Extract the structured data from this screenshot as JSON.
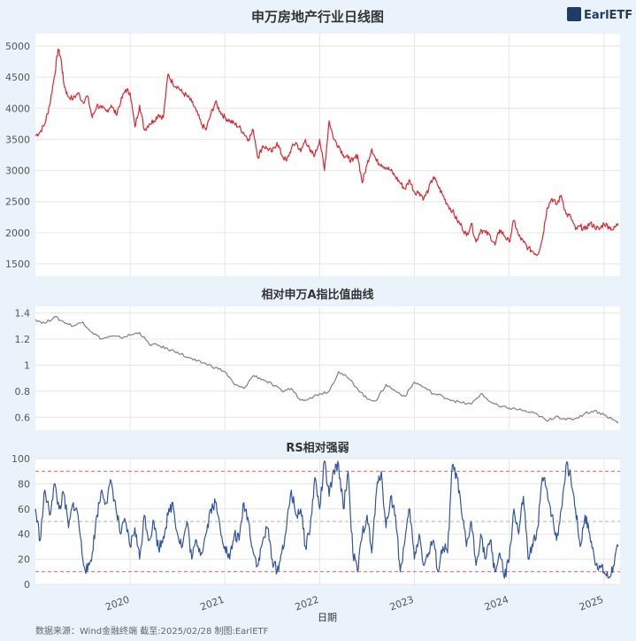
{
  "source_note": "数据来源：Wind金融终端 截至:2025/02/28 制图:EarlETF",
  "logo": {
    "text": "EarlETF",
    "icon": "earletf-logo-icon",
    "color": "#1f3c66"
  },
  "xlabel": "日期",
  "x_ticks": [
    "2020",
    "2021",
    "2022",
    "2023",
    "2024",
    "2025"
  ],
  "chart_data": [
    {
      "type": "line",
      "title": "申万房地产行业日线图",
      "color": "#e0262e",
      "ylim": [
        1300,
        5200
      ],
      "yticks": [
        1500,
        2000,
        2500,
        3000,
        3500,
        4000,
        4500,
        5000
      ],
      "xlim": [
        2019.0,
        2025.17
      ],
      "series": [
        {
          "x": [
            2019.0,
            2019.05,
            2019.1,
            2019.15,
            2019.2,
            2019.24,
            2019.27,
            2019.3,
            2019.34,
            2019.4,
            2019.45,
            2019.5,
            2019.55,
            2019.6,
            2019.65,
            2019.7,
            2019.75,
            2019.8,
            2019.85,
            2019.9,
            2019.95,
            2020.0,
            2020.05,
            2020.1,
            2020.15,
            2020.2,
            2020.25,
            2020.3,
            2020.35,
            2020.4,
            2020.45,
            2020.5,
            2020.55,
            2020.6,
            2020.65,
            2020.7,
            2020.75,
            2020.8,
            2020.85,
            2020.9,
            2020.95,
            2021.0,
            2021.05,
            2021.1,
            2021.15,
            2021.2,
            2021.25,
            2021.3,
            2021.35,
            2021.4,
            2021.45,
            2021.5,
            2021.55,
            2021.6,
            2021.65,
            2021.7,
            2021.75,
            2021.8,
            2021.85,
            2021.9,
            2021.95,
            2022.0,
            2022.05,
            2022.1,
            2022.15,
            2022.2,
            2022.25,
            2022.3,
            2022.35,
            2022.4,
            2022.45,
            2022.5,
            2022.55,
            2022.6,
            2022.65,
            2022.7,
            2022.75,
            2022.8,
            2022.85,
            2022.9,
            2022.95,
            2023.0,
            2023.05,
            2023.1,
            2023.15,
            2023.2,
            2023.25,
            2023.3,
            2023.35,
            2023.4,
            2023.45,
            2023.5,
            2023.55,
            2023.6,
            2023.65,
            2023.7,
            2023.75,
            2023.8,
            2023.85,
            2023.9,
            2023.95,
            2024.0,
            2024.05,
            2024.1,
            2024.15,
            2024.2,
            2024.25,
            2024.3,
            2024.35,
            2024.4,
            2024.45,
            2024.5,
            2024.55,
            2024.6,
            2024.65,
            2024.7,
            2024.75,
            2024.8,
            2024.85,
            2024.9,
            2024.95,
            2025.0,
            2025.05,
            2025.1,
            2025.15
          ],
          "values": [
            3560,
            3620,
            3750,
            4050,
            4500,
            4950,
            4800,
            4400,
            4200,
            4150,
            4250,
            4100,
            4200,
            3850,
            4050,
            4000,
            3950,
            4050,
            3900,
            4100,
            4300,
            4250,
            3700,
            4050,
            3650,
            3750,
            3800,
            3900,
            3850,
            4550,
            4400,
            4350,
            4250,
            4200,
            4100,
            3950,
            3750,
            3650,
            3900,
            4100,
            3950,
            3850,
            3800,
            3750,
            3700,
            3600,
            3500,
            3650,
            3200,
            3400,
            3350,
            3300,
            3450,
            3250,
            3150,
            3350,
            3450,
            3300,
            3500,
            3300,
            3250,
            3500,
            3000,
            3800,
            3500,
            3400,
            3250,
            3200,
            3150,
            3250,
            2800,
            3100,
            3350,
            3150,
            3100,
            3050,
            3000,
            2900,
            2800,
            2700,
            2850,
            2650,
            2650,
            2550,
            2700,
            2900,
            2750,
            2600,
            2450,
            2350,
            2200,
            2100,
            1950,
            2150,
            1850,
            2050,
            2000,
            1950,
            1800,
            2050,
            1950,
            1850,
            2200,
            1950,
            1850,
            1750,
            1700,
            1650,
            1900,
            2400,
            2550,
            2450,
            2600,
            2300,
            2250,
            2050,
            2100,
            2050,
            2150,
            2100,
            2050,
            2150,
            2100,
            2050,
            2150
          ]
        }
      ]
    },
    {
      "type": "line",
      "title": "相对申万A指比值曲线",
      "color": "#808080",
      "ylim": [
        0.5,
        1.45
      ],
      "yticks": [
        0.6,
        0.8,
        1.0,
        1.2,
        1.4
      ],
      "xlim": [
        2019.0,
        2025.17
      ],
      "series": [
        {
          "x": [
            2019.0,
            2019.1,
            2019.2,
            2019.3,
            2019.4,
            2019.5,
            2019.6,
            2019.7,
            2019.8,
            2019.9,
            2020.0,
            2020.1,
            2020.2,
            2020.3,
            2020.4,
            2020.5,
            2020.6,
            2020.7,
            2020.8,
            2020.9,
            2021.0,
            2021.1,
            2021.2,
            2021.3,
            2021.4,
            2021.5,
            2021.6,
            2021.7,
            2021.8,
            2021.9,
            2022.0,
            2022.1,
            2022.2,
            2022.3,
            2022.4,
            2022.5,
            2022.6,
            2022.7,
            2022.8,
            2022.9,
            2023.0,
            2023.1,
            2023.2,
            2023.3,
            2023.4,
            2023.5,
            2023.6,
            2023.7,
            2023.8,
            2023.9,
            2024.0,
            2024.1,
            2024.2,
            2024.3,
            2024.4,
            2024.5,
            2024.6,
            2024.7,
            2024.8,
            2024.9,
            2025.0,
            2025.1,
            2025.15
          ],
          "values": [
            1.35,
            1.32,
            1.37,
            1.33,
            1.3,
            1.33,
            1.25,
            1.2,
            1.22,
            1.21,
            1.23,
            1.25,
            1.16,
            1.15,
            1.12,
            1.1,
            1.06,
            1.03,
            1.01,
            0.98,
            0.95,
            0.85,
            0.82,
            0.92,
            0.89,
            0.85,
            0.8,
            0.82,
            0.73,
            0.75,
            0.78,
            0.8,
            0.95,
            0.9,
            0.82,
            0.74,
            0.73,
            0.85,
            0.8,
            0.76,
            0.87,
            0.83,
            0.78,
            0.76,
            0.73,
            0.71,
            0.7,
            0.78,
            0.72,
            0.68,
            0.67,
            0.66,
            0.64,
            0.62,
            0.57,
            0.61,
            0.58,
            0.59,
            0.63,
            0.65,
            0.62,
            0.58,
            0.56
          ]
        }
      ]
    },
    {
      "type": "line",
      "title": "RS相对强弱",
      "color": "#2f55a4",
      "ylim": [
        0,
        100
      ],
      "yticks": [
        0,
        20,
        40,
        60,
        80,
        100
      ],
      "xlim": [
        2019.0,
        2025.17
      ],
      "reference_lines": [
        {
          "y": 90,
          "color": "#e06060"
        },
        {
          "y": 50,
          "color": "#b0b0b0"
        },
        {
          "y": 10,
          "color": "#e06060"
        }
      ],
      "series": [
        {
          "x": [
            2019.0,
            2019.05,
            2019.1,
            2019.15,
            2019.2,
            2019.25,
            2019.3,
            2019.35,
            2019.4,
            2019.45,
            2019.5,
            2019.55,
            2019.6,
            2019.65,
            2019.7,
            2019.75,
            2019.8,
            2019.85,
            2019.9,
            2019.95,
            2020.0,
            2020.05,
            2020.1,
            2020.15,
            2020.2,
            2020.25,
            2020.3,
            2020.35,
            2020.4,
            2020.45,
            2020.5,
            2020.55,
            2020.6,
            2020.65,
            2020.7,
            2020.75,
            2020.8,
            2020.85,
            2020.9,
            2020.95,
            2021.0,
            2021.05,
            2021.1,
            2021.15,
            2021.2,
            2021.25,
            2021.3,
            2021.35,
            2021.4,
            2021.45,
            2021.5,
            2021.55,
            2021.6,
            2021.65,
            2021.7,
            2021.75,
            2021.8,
            2021.85,
            2021.9,
            2021.95,
            2022.0,
            2022.05,
            2022.1,
            2022.15,
            2022.2,
            2022.25,
            2022.3,
            2022.35,
            2022.4,
            2022.45,
            2022.5,
            2022.55,
            2022.6,
            2022.65,
            2022.7,
            2022.75,
            2022.8,
            2022.85,
            2022.9,
            2022.95,
            2023.0,
            2023.05,
            2023.1,
            2023.15,
            2023.2,
            2023.25,
            2023.3,
            2023.35,
            2023.4,
            2023.45,
            2023.5,
            2023.55,
            2023.6,
            2023.65,
            2023.7,
            2023.75,
            2023.8,
            2023.85,
            2023.9,
            2023.95,
            2024.0,
            2024.05,
            2024.1,
            2024.15,
            2024.2,
            2024.25,
            2024.3,
            2024.35,
            2024.4,
            2024.45,
            2024.5,
            2024.55,
            2024.6,
            2024.65,
            2024.7,
            2024.75,
            2024.8,
            2024.85,
            2024.9,
            2024.95,
            2025.0,
            2025.05,
            2025.1,
            2025.15
          ],
          "values": [
            60,
            35,
            75,
            55,
            80,
            60,
            72,
            45,
            65,
            55,
            20,
            10,
            25,
            55,
            75,
            65,
            82,
            60,
            40,
            50,
            30,
            45,
            20,
            55,
            35,
            50,
            28,
            38,
            55,
            65,
            40,
            30,
            50,
            20,
            35,
            25,
            40,
            60,
            65,
            45,
            30,
            20,
            40,
            35,
            65,
            50,
            25,
            15,
            35,
            45,
            20,
            10,
            25,
            45,
            75,
            55,
            60,
            30,
            45,
            85,
            60,
            98,
            70,
            90,
            95,
            60,
            90,
            25,
            10,
            40,
            55,
            25,
            75,
            90,
            45,
            70,
            55,
            10,
            35,
            60,
            20,
            40,
            15,
            25,
            35,
            10,
            30,
            25,
            95,
            85,
            55,
            30,
            50,
            15,
            40,
            20,
            35,
            10,
            25,
            5,
            20,
            60,
            40,
            70,
            20,
            30,
            45,
            85,
            75,
            55,
            35,
            60,
            95,
            85,
            60,
            30,
            55,
            40,
            20,
            15,
            10,
            5,
            15,
            30
          ]
        }
      ]
    }
  ]
}
